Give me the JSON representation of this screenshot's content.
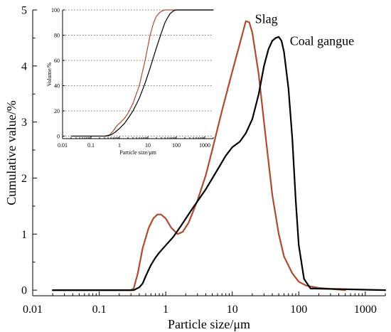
{
  "chart_data": [
    {
      "type": "line",
      "title": "",
      "xlabel": "Particle size/μm",
      "ylabel": "Cumulative value/%",
      "x_scale": "log",
      "xlim": [
        0.01,
        2000
      ],
      "ylim": [
        -0.1,
        5
      ],
      "x_ticks": [
        0.01,
        0.1,
        1,
        10,
        100,
        1000
      ],
      "x_tick_labels": [
        "0.01",
        "0.1",
        "1",
        "10",
        "100",
        "1000"
      ],
      "y_ticks": [
        0,
        1,
        2,
        3,
        4,
        5
      ],
      "y_tick_labels": [
        "0",
        "1",
        "2",
        "3",
        "4",
        "5"
      ],
      "series": [
        {
          "name": "Slag",
          "color": "#b04a2c",
          "x": [
            0.02,
            0.3,
            0.33,
            0.38,
            0.45,
            0.55,
            0.65,
            0.75,
            0.85,
            1.0,
            1.2,
            1.5,
            1.8,
            2.2,
            3.0,
            4.0,
            5.0,
            7.0,
            10,
            13,
            16,
            18,
            20,
            25,
            30,
            40,
            50,
            60,
            80,
            100,
            130,
            200,
            500
          ],
          "y": [
            0,
            0,
            0.03,
            0.3,
            0.75,
            1.1,
            1.28,
            1.35,
            1.35,
            1.28,
            1.12,
            1.0,
            1.04,
            1.2,
            1.6,
            2.05,
            2.5,
            3.2,
            3.9,
            4.4,
            4.8,
            4.78,
            4.6,
            3.85,
            3.0,
            1.7,
            1.0,
            0.6,
            0.3,
            0.15,
            0.08,
            0.04,
            0
          ]
        },
        {
          "name": "Coal gangue",
          "color": "#000000",
          "x": [
            0.02,
            0.33,
            0.4,
            0.45,
            0.5,
            0.6,
            0.7,
            0.8,
            1.0,
            1.3,
            1.7,
            2.5,
            4,
            6,
            8,
            10,
            13,
            16,
            20,
            25,
            30,
            35,
            40,
            45,
            50,
            55,
            60,
            70,
            80,
            90,
            100,
            120,
            150,
            2000
          ],
          "y": [
            0,
            0,
            0.05,
            0.12,
            0.25,
            0.45,
            0.58,
            0.67,
            0.8,
            0.95,
            1.15,
            1.45,
            1.8,
            2.15,
            2.4,
            2.55,
            2.65,
            2.8,
            3.05,
            3.5,
            4.0,
            4.3,
            4.45,
            4.5,
            4.52,
            4.45,
            4.25,
            3.6,
            2.7,
            1.6,
            0.8,
            0.2,
            0.03,
            0
          ]
        }
      ],
      "annotations": [
        {
          "text": "Slag",
          "series": "Slag"
        },
        {
          "text": "Coal gangue",
          "series": "Coal gangue"
        }
      ]
    },
    {
      "type": "line",
      "title": "",
      "xlabel": "Particle size/μm",
      "ylabel": "Volume/%",
      "x_scale": "log",
      "xlim": [
        0.01,
        2000
      ],
      "ylim": [
        -2,
        100
      ],
      "x_ticks": [
        0.01,
        0.1,
        1,
        10,
        100,
        1000
      ],
      "x_tick_labels": [
        "0.01",
        "0.1",
        "1",
        "10",
        "100",
        "1000"
      ],
      "y_ticks": [
        0,
        20,
        40,
        60,
        80,
        100
      ],
      "y_tick_labels": [
        "0",
        "20",
        "40",
        "60",
        "80",
        "100"
      ],
      "series": [
        {
          "name": "Slag",
          "color": "#b04a2c",
          "x": [
            0.02,
            0.3,
            0.45,
            0.6,
            0.8,
            1.0,
            1.5,
            2,
            3,
            5,
            8,
            12,
            16,
            20,
            25,
            30,
            40,
            60,
            100,
            2000
          ],
          "y": [
            0,
            0,
            1,
            4,
            8,
            10,
            14,
            18,
            26,
            40,
            60,
            80,
            90,
            95,
            97.5,
            99,
            100,
            100,
            100,
            100
          ]
        },
        {
          "name": "Coal gangue",
          "color": "#000000",
          "x": [
            0.02,
            0.35,
            0.5,
            0.7,
            1.0,
            1.5,
            2,
            3,
            5,
            8,
            12,
            20,
            30,
            40,
            50,
            60,
            80,
            100,
            150,
            2000
          ],
          "y": [
            0,
            0,
            1,
            3,
            6,
            10,
            14,
            20,
            30,
            42,
            54,
            70,
            82,
            90,
            94,
            97,
            99.3,
            100,
            100,
            100
          ]
        }
      ]
    }
  ]
}
